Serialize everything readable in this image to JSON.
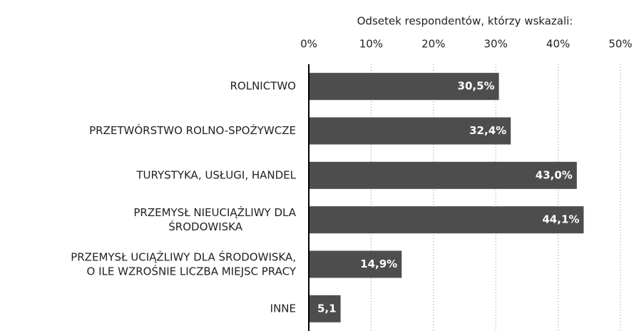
{
  "chart_data": {
    "type": "bar",
    "orientation": "horizontal",
    "title": "Odsetek respondentów, którzy wskazali:",
    "categories": [
      "ROLNICTWO",
      "PRZETWÓRSTWO ROLNO-SPOŻYWCZE",
      "TURYSTYKA, USŁUGI, HANDEL",
      "PRZEMYSŁ NIEUCIĄŻLIWY DLA\nŚRODOWISKA",
      "PRZEMYSŁ UCIĄŻLIWY DLA ŚRODOWISKA,\nO ILE WZROŚNIE LICZBA MIEJSC PRACY",
      "INNE"
    ],
    "values": [
      30.5,
      32.4,
      43.0,
      44.1,
      14.9,
      5.1
    ],
    "value_labels": [
      "30,5%",
      "32,4%",
      "43,0%",
      "44,1%",
      "14,9%",
      "5,1"
    ],
    "color": "#4d4d4d",
    "xlim": [
      0,
      50
    ],
    "xticks": [
      {
        "value": 0,
        "label": "0%"
      },
      {
        "value": 10,
        "label": "10%"
      },
      {
        "value": 20,
        "label": "20%"
      },
      {
        "value": 30,
        "label": "30%"
      },
      {
        "value": 40,
        "label": "40%"
      },
      {
        "value": 50,
        "label": "50%"
      }
    ],
    "grid": true
  }
}
